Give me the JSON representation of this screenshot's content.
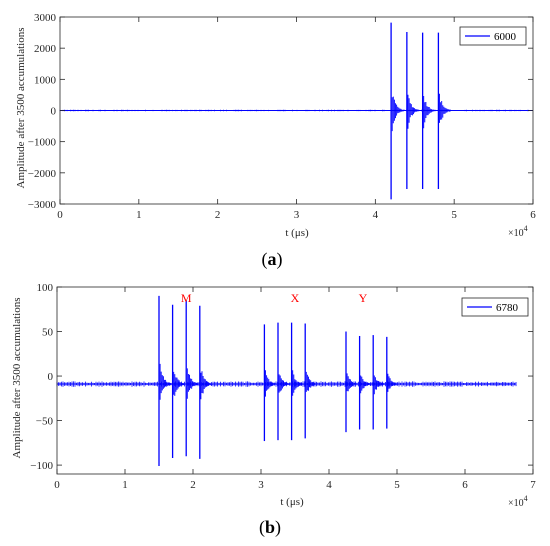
{
  "chart_data": [
    {
      "type": "line",
      "panel_label": "a",
      "xlabel": "t (μs)",
      "ylabel": "Amplitude after 3500 accumulations",
      "x_exponent": "×10",
      "x_exponent_power": "4",
      "xlim": [
        0,
        6
      ],
      "ylim": [
        -3000,
        3000
      ],
      "x_ticks": [
        "0",
        "1",
        "2",
        "3",
        "4",
        "5",
        "6"
      ],
      "y_ticks": [
        "-3000",
        "-2000",
        "-1000",
        "0",
        "1000",
        "2000",
        "3000"
      ],
      "grid": false,
      "legend_position": "top-right",
      "series": [
        {
          "name": "6000",
          "color": "#0000ff",
          "baseline": 0,
          "noise": 25,
          "bursts": [
            {
              "x": 0.2,
              "max": 15,
              "min": -15
            },
            {
              "x": 2.2,
              "max": 15,
              "min": -15
            },
            {
              "x": 4.2,
              "max": 2820,
              "min": -2850
            },
            {
              "x": 4.4,
              "max": 2520,
              "min": -2520
            },
            {
              "x": 4.6,
              "max": 2500,
              "min": -2520
            },
            {
              "x": 4.8,
              "max": 2500,
              "min": -2520
            }
          ]
        }
      ]
    },
    {
      "type": "line",
      "panel_label": "b",
      "xlabel": "t (μs)",
      "ylabel": "Amplitude after 3500 accumulations",
      "x_exponent": "×10",
      "x_exponent_power": "4",
      "xlim": [
        0,
        7
      ],
      "ylim": [
        -110,
        100
      ],
      "x_ticks": [
        "0",
        "1",
        "2",
        "3",
        "4",
        "5",
        "6",
        "7"
      ],
      "y_ticks": [
        "-100",
        "-50",
        "0",
        "50",
        "100"
      ],
      "grid": false,
      "legend_position": "top-right",
      "annotations": [
        {
          "text": "M",
          "x": 1.9,
          "y": 83,
          "color": "#ff0000"
        },
        {
          "text": "X",
          "x": 3.5,
          "y": 83,
          "color": "#ff0000"
        },
        {
          "text": "Y",
          "x": 4.5,
          "y": 83,
          "color": "#ff0000"
        }
      ],
      "series": [
        {
          "name": "6780",
          "color": "#0000ff",
          "baseline": -9,
          "noise": 3,
          "x_end": 6.75,
          "bursts": [
            {
              "x": 1.5,
              "max": 90,
              "min": -101
            },
            {
              "x": 1.7,
              "max": 80,
              "min": -92
            },
            {
              "x": 1.9,
              "max": 85,
              "min": -90
            },
            {
              "x": 2.1,
              "max": 79,
              "min": -93
            },
            {
              "x": 3.05,
              "max": 58,
              "min": -73
            },
            {
              "x": 3.25,
              "max": 60,
              "min": -72
            },
            {
              "x": 3.45,
              "max": 60,
              "min": -72
            },
            {
              "x": 3.65,
              "max": 59,
              "min": -70
            },
            {
              "x": 4.25,
              "max": 50,
              "min": -63
            },
            {
              "x": 4.45,
              "max": 45,
              "min": -60
            },
            {
              "x": 4.65,
              "max": 46,
              "min": -60
            },
            {
              "x": 4.85,
              "max": 44,
              "min": -59
            }
          ]
        }
      ]
    }
  ]
}
